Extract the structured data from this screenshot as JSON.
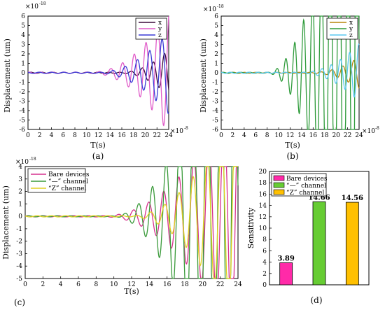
{
  "chart_data": [
    {
      "type": "line",
      "panel_label": "(a)",
      "xlabel": "T(s)",
      "ylabel": "Displacement (um)",
      "y_multiplier": "×10",
      "y_exponent": "-18",
      "x_multiplier": "×10",
      "x_exponent": "-8",
      "xlim": [
        0,
        24
      ],
      "ylim": [
        -6,
        6
      ],
      "xticks": [
        "0",
        "2",
        "4",
        "6",
        "8",
        "10",
        "12",
        "14",
        "16",
        "18",
        "20",
        "22",
        "24"
      ],
      "yticks": [
        "-6",
        "-5",
        "-4",
        "-3",
        "-2",
        "-1",
        "0",
        "1",
        "2",
        "3",
        "4",
        "5",
        "6"
      ],
      "legend_position": "top-right",
      "series": [
        {
          "name": "x",
          "color": "#3a0a3a",
          "onset": 16,
          "growth": 0.15,
          "amp": 0.06,
          "period": 1.9,
          "phase": 0
        },
        {
          "name": "y",
          "color": "#e05ac8",
          "onset": 11,
          "growth": 0.15,
          "amp": 0.08,
          "period": 2.0,
          "phase": 1.2
        },
        {
          "name": "z",
          "color": "#3a3ad6",
          "onset": 12,
          "growth": 0.12,
          "amp": 0.06,
          "period": 2.1,
          "phase": 2.3
        }
      ]
    },
    {
      "type": "line",
      "panel_label": "(b)",
      "xlabel": "T(s)",
      "ylabel": "Displacement (um)",
      "y_multiplier": "×10",
      "y_exponent": "-18",
      "x_multiplier": "×10",
      "x_exponent": "-8",
      "xlim": [
        0,
        24
      ],
      "ylim": [
        -6,
        6
      ],
      "xticks": [
        "0",
        "2",
        "4",
        "6",
        "8",
        "10",
        "12",
        "14",
        "16",
        "18",
        "20",
        "22",
        "24"
      ],
      "yticks": [
        "-6",
        "-5",
        "-4",
        "-3",
        "-2",
        "-1",
        "0",
        "1",
        "2",
        "3",
        "4",
        "5",
        "6"
      ],
      "legend_position": "top-right",
      "series": [
        {
          "name": "x",
          "color": "#b8860b",
          "onset": 16,
          "growth": 0.1,
          "amp": 0.05,
          "period": 1.9,
          "phase": 0.7
        },
        {
          "name": "y",
          "color": "#2e9b3a",
          "onset": 8,
          "growth": 0.55,
          "amp": 0.05,
          "period": 1.55,
          "phase": 0
        },
        {
          "name": "z",
          "color": "#5ac8f0",
          "onset": 14,
          "growth": 0.12,
          "amp": 0.06,
          "period": 1.6,
          "phase": 1.8
        }
      ]
    },
    {
      "type": "line",
      "panel_label": "(c)",
      "xlabel": "T(s)",
      "ylabel": "Displacement (um)",
      "y_multiplier": "×10",
      "y_exponent": "-18",
      "xlim": [
        0,
        24
      ],
      "ylim": [
        -5,
        4
      ],
      "xticks": [
        "0",
        "2",
        "4",
        "6",
        "8",
        "10",
        "12",
        "14",
        "16",
        "18",
        "20",
        "22",
        "24"
      ],
      "yticks": [
        "-5",
        "-4",
        "-3",
        "-2",
        "-1",
        "0",
        "1",
        "2",
        "3",
        "4"
      ],
      "legend_position": "top-left",
      "series": [
        {
          "name": "Bare devices",
          "color": "#d6308e",
          "onset": 9,
          "growth": 0.18,
          "amp": 0.05,
          "period": 1.7,
          "phase": 0.4
        },
        {
          "name": "“—” channel",
          "color": "#3a9a3a",
          "onset": 10,
          "growth": 0.5,
          "amp": 0.04,
          "period": 1.55,
          "phase": 0
        },
        {
          "name": "“Z” channel",
          "color": "#e0d020",
          "onset": 12,
          "growth": 0.26,
          "amp": 0.05,
          "period": 1.6,
          "phase": 2.6
        }
      ]
    },
    {
      "type": "bar",
      "panel_label": "(d)",
      "xlabel": "",
      "ylabel": "Sensitivity",
      "ylim": [
        0,
        20
      ],
      "yticks": [
        "0",
        "2",
        "4",
        "6",
        "8",
        "10",
        "12",
        "14",
        "16",
        "18",
        "20"
      ],
      "legend_position": "top-left",
      "categories": [
        "Bare devices",
        "“—” channel",
        "“Z” channel"
      ],
      "values": [
        3.89,
        14.66,
        14.56
      ],
      "value_labels": [
        "3.89",
        "14.66",
        "14.56"
      ],
      "colors": [
        "#ff2aa8",
        "#66cc33",
        "#ffc000"
      ]
    }
  ]
}
